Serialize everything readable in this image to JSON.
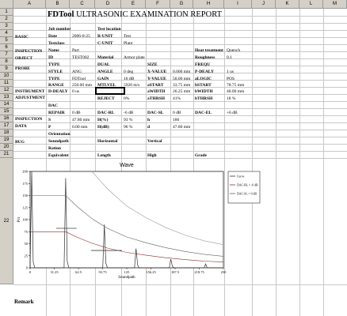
{
  "columns": [
    "A",
    "B",
    "C",
    "D",
    "E",
    "F",
    "G",
    "H",
    "I",
    "J",
    "K",
    "L",
    "M"
  ],
  "rows": [
    "1",
    "2",
    "3",
    "4",
    "5",
    "6",
    "7",
    "8",
    "9",
    "10",
    "11",
    "12",
    "13",
    "14",
    "15",
    "16",
    "17",
    "18",
    "19",
    "20",
    "21",
    "22"
  ],
  "title": {
    "bold": "FDTool",
    "rest": " ULTRASONIC EXAMINATION REPORT"
  },
  "sections": {
    "basic": "BASIC",
    "inspection": "INSPECTION",
    "object": "OBJECT",
    "probe": "PROBE",
    "instrument": "INSTRUMENT",
    "adjustment": "ADJUSTMENT",
    "inspection2": "INSPECTION",
    "data": "DATA",
    "bug": "BUG",
    "remark": "Remark"
  },
  "fields": {
    "job_number": "Job number",
    "test_location": "Test location",
    "date_label": "Date",
    "date_value": "2006-8-25",
    "r_unit_label": "R-UNIT",
    "r_unit_value": "Test",
    "testclass_label": "Testclass",
    "c_unit_label": "C-UNIT",
    "c_unit_value": "Plant",
    "name_label": "Name",
    "name_value": "Part",
    "heat_label": "Heat treatment",
    "heat_value": "Quench",
    "id_label": "ID",
    "id_value": "TEST002",
    "material_label": "Material",
    "material_value": "Armor plate",
    "roughness_label": "Roughness",
    "roughness_value": "0.1",
    "type_label": "TYPE",
    "dual_label": "DUAL",
    "size_label": "SIZE",
    "frequ_label": "FREQU",
    "style_label": "STYLE",
    "style_value": "ANG",
    "angle_label": "ANGLE",
    "angle_value": "0 deg",
    "xvalue_label": "X-VALUE",
    "xvalue_value": "0.000 mm",
    "pdealy_label": "P-DEALY",
    "pdealy_value": "1 us",
    "type2_label": "TYPE",
    "type2_value": "FDTool",
    "gain_label": "GAIN",
    "gain_value": "16 dB",
    "yvalue_label": "Y-VALUE",
    "yvalue_value": "50.00 mm",
    "alogic_label": "aLOGIC",
    "alogic_value": "POS",
    "range_label": "RANGE",
    "range_value": "250.00 mm",
    "mtlvel_label": "MTLVEL",
    "mtlvel_value": "5920 m/s",
    "astart_label": "aSTART",
    "astart_value": "33.75 mm",
    "bstart_label": "bSTART",
    "bstart_value": "78.75 mm",
    "ddealy_label": "D-DEALY",
    "ddealy_value": "0 us",
    "awidth_label": "aWIDTH",
    "awidth_value": "26.25 mm",
    "bwidth_label": "bWIDTH",
    "bwidth_value": "40.00 mm",
    "reject_label": "REJECT",
    "reject_value": "0%",
    "athrsh_label": "aTHRSH",
    "athrsh_value": "41%",
    "bthrsh_label": "bTHRSH",
    "bthrsh_value": "18 %",
    "dac_label": "DAC",
    "repair_label": "REPAIR",
    "repair_value": "0 dB",
    "dacrl_label": "DAC-RL",
    "dacrl_value": "-6 dB",
    "dacsl_label": "DAC-SL",
    "dacsl_value": "0 dB",
    "dacel_label": "DAC-EL",
    "dacel_value": "+6 dB",
    "s_label": "S",
    "s_value": "47.80 mm",
    "hpct_label": "H(%)",
    "hpct_value": "93 %",
    "h_label": "h",
    "h_value": "186",
    "p_label": "P",
    "p_value": "0.00 mm",
    "hdb_label": "H(dB)",
    "hdb_value": "96 %",
    "d_label": "d",
    "d_value": "47.80 mm",
    "orientation_label": "Orientation",
    "soundpath_label": "Soundpath",
    "horizontal_label": "Horizontal",
    "vertical_label": "Vertical",
    "ration_label": "Ration",
    "equivalent_label": "Equivalent",
    "length_label": "Length",
    "high_label": "High",
    "grade_label": "Grade"
  },
  "chart_data": {
    "type": "line",
    "title": "Wave",
    "xlabel": "Soundpath",
    "ylabel": "Pct",
    "xlim": [
      0,
      250
    ],
    "ylim": [
      0,
      200
    ],
    "x_ticks": [
      "0",
      "31.25",
      "62.5",
      "93.75",
      "125",
      "156.25",
      "187.5",
      "218.75",
      "250"
    ],
    "y_ticks": [
      "0",
      "25",
      "50",
      "75",
      "100",
      "125",
      "150",
      "175",
      "200"
    ],
    "legend": [
      "Curve",
      "DAC-RL = -6 dB",
      "DAC-SL = 0 dB"
    ],
    "legend_position": "right",
    "series": [
      {
        "name": "Curve",
        "color": "#303030",
        "points": [
          [
            0,
            0
          ],
          [
            2,
            200
          ],
          [
            4,
            12
          ],
          [
            6,
            0
          ],
          [
            44,
            0
          ],
          [
            46,
            186
          ],
          [
            48,
            14
          ],
          [
            50,
            0
          ],
          [
            94,
            0
          ],
          [
            96,
            90
          ],
          [
            98,
            10
          ],
          [
            100,
            0
          ],
          [
            135,
            0
          ],
          [
            137,
            40
          ],
          [
            139,
            6
          ],
          [
            141,
            0
          ],
          [
            180,
            0
          ],
          [
            182,
            18
          ],
          [
            184,
            3
          ],
          [
            186,
            0
          ],
          [
            225,
            0
          ],
          [
            227,
            8
          ],
          [
            229,
            0
          ],
          [
            250,
            0
          ]
        ]
      },
      {
        "name": "DAC-RL = -6 dB",
        "color": "#8b2a2a",
        "points": [
          [
            0,
            75
          ],
          [
            40,
            75
          ],
          [
            46,
            75
          ],
          [
            60,
            64
          ],
          [
            80,
            51
          ],
          [
            100,
            41
          ],
          [
            125,
            32
          ],
          [
            150,
            26
          ],
          [
            175,
            21
          ],
          [
            200,
            17
          ],
          [
            225,
            14
          ],
          [
            250,
            12
          ]
        ]
      },
      {
        "name": "DAC-SL = 0 dB",
        "color": "#606060",
        "points": [
          [
            0,
            150
          ],
          [
            40,
            150
          ],
          [
            46,
            150
          ],
          [
            60,
            128
          ],
          [
            80,
            102
          ],
          [
            100,
            82
          ],
          [
            125,
            64
          ],
          [
            150,
            52
          ],
          [
            175,
            42
          ],
          [
            200,
            34
          ],
          [
            225,
            28
          ],
          [
            250,
            24
          ]
        ]
      },
      {
        "name": "DAC-EL",
        "color": "#9a9a9a",
        "points": [
          [
            80,
            200
          ],
          [
            100,
            164
          ],
          [
            125,
            128
          ],
          [
            150,
            104
          ],
          [
            175,
            84
          ],
          [
            200,
            68
          ],
          [
            225,
            56
          ],
          [
            250,
            48
          ]
        ]
      }
    ],
    "gates": [
      {
        "name": "gate-a",
        "x": [
          33.75,
          60.0
        ],
        "y": 82,
        "color": "#404040"
      },
      {
        "name": "gate-b",
        "x": [
          78.75,
          118.75
        ],
        "y": 36,
        "color": "#404040"
      }
    ]
  }
}
